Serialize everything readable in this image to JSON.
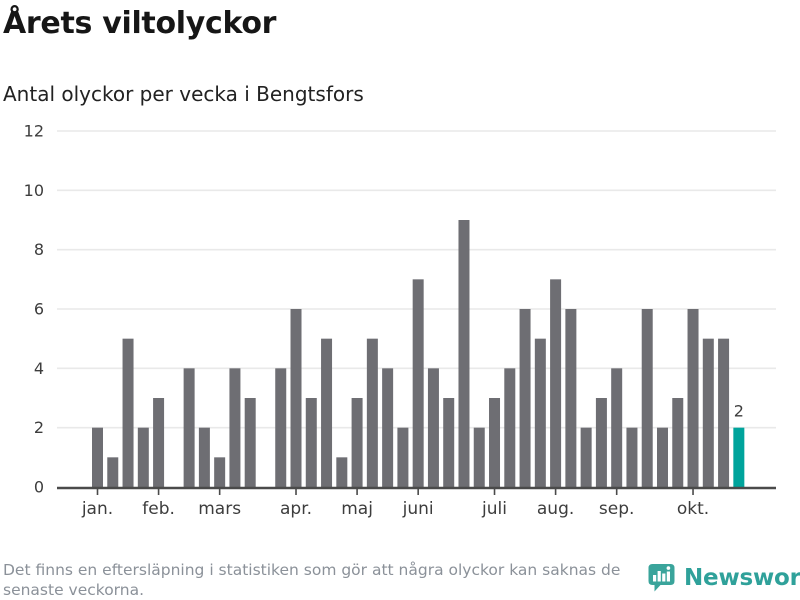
{
  "header": {
    "title": "Årets viltolyckor",
    "subtitle": "Antal olyckor per vecka i Bengtsfors"
  },
  "footer": {
    "note_line1": "Det finns en eftersläpning i statistiken som gör att några olyckor kan saknas de",
    "note_line2": "senaste veckorna.",
    "brand": "Newsworthy"
  },
  "chart_data": {
    "type": "bar",
    "title": "Årets viltolyckor",
    "subtitle": "Antal olyckor per vecka i Bengtsfors",
    "x_unit": "week",
    "values": [
      2,
      1,
      5,
      2,
      3,
      0,
      4,
      2,
      1,
      4,
      3,
      0,
      4,
      6,
      3,
      5,
      1,
      3,
      5,
      4,
      2,
      7,
      4,
      3,
      9,
      2,
      3,
      4,
      6,
      5,
      7,
      6,
      2,
      3,
      4,
      2,
      6,
      2,
      3,
      6,
      5,
      5,
      2
    ],
    "highlight_index": 42,
    "highlight_value_label": "2",
    "month_ticks": [
      {
        "label": "jan.",
        "week_index": 0
      },
      {
        "label": "feb.",
        "week_index": 4
      },
      {
        "label": "mars",
        "week_index": 8
      },
      {
        "label": "apr.",
        "week_index": 13
      },
      {
        "label": "maj",
        "week_index": 17
      },
      {
        "label": "juni",
        "week_index": 21
      },
      {
        "label": "juli",
        "week_index": 26
      },
      {
        "label": "aug.",
        "week_index": 30
      },
      {
        "label": "sep.",
        "week_index": 34
      },
      {
        "label": "okt.",
        "week_index": 39
      }
    ],
    "ylim": [
      0,
      12
    ],
    "yticks": [
      0,
      2,
      4,
      6,
      8,
      10,
      12
    ],
    "grid": true,
    "legend": false,
    "colors": {
      "bar": "#6e6e73",
      "highlight": "#00a49c",
      "grid": "#e9e9e9",
      "axis": "#4a4a4a",
      "tick_label": "#3d3d3d",
      "value_label": "#3d3d3d"
    }
  }
}
